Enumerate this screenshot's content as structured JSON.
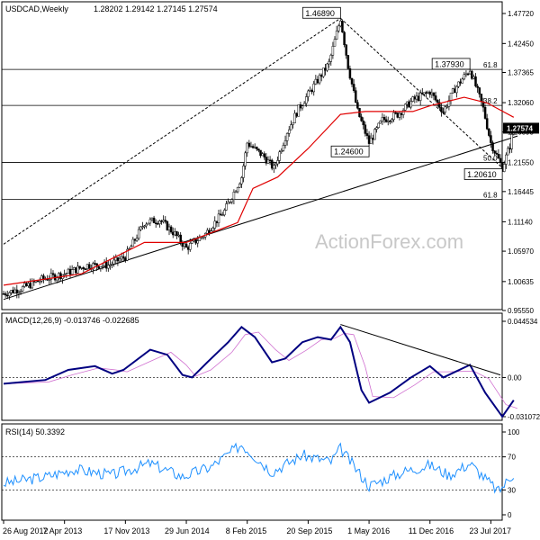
{
  "chart_data": {
    "type": "candlestick",
    "header": {
      "symbol": "USDCAD,Weekly",
      "ohlc": "1.28202 1.29142 1.27145 1.27574"
    },
    "watermark": "ActionForex.com",
    "price_axis": {
      "ticks": [
        1.4772,
        1.4245,
        1.37365,
        1.3206,
        1.26895,
        1.2155,
        1.16445,
        1.1114,
        1.0597,
        1.00635,
        0.9555
      ],
      "tick_labels": [
        "1.47720",
        "1.42450",
        "1.37365",
        "1.32060",
        "1.26895",
        "1.21550",
        "1.16445",
        "1.11140",
        "1.05970",
        "1.00635",
        "0.95550"
      ],
      "ylim": [
        0.9555,
        1.4772
      ],
      "current": {
        "value": 1.27574,
        "label": "1.27574"
      }
    },
    "x_axis": {
      "date_range": [
        "2012-08-26",
        "2017-08-27"
      ],
      "tick_labels": [
        "26 Aug 2012",
        "7 Apr 2013",
        "17 Nov 2013",
        "29 Jun 2014",
        "8 Feb 2015",
        "20 Sep 2015",
        "1 May 2016",
        "11 Dec 2016",
        "23 Jul 2017"
      ],
      "tick_dates": [
        "2012-08-26",
        "2013-04-07",
        "2013-11-17",
        "2014-06-29",
        "2015-02-08",
        "2015-09-20",
        "2016-05-01",
        "2016-12-11",
        "2017-07-23"
      ]
    },
    "price_series": [
      {
        "date": "2012-08-26",
        "close": 0.985
      },
      {
        "date": "2012-11-04",
        "close": 0.995
      },
      {
        "date": "2013-01-13",
        "close": 1.01
      },
      {
        "date": "2013-04-07",
        "close": 1.02
      },
      {
        "date": "2013-07-01",
        "close": 1.035
      },
      {
        "date": "2013-09-15",
        "close": 1.035
      },
      {
        "date": "2013-11-17",
        "close": 1.05
      },
      {
        "date": "2014-01-26",
        "close": 1.11
      },
      {
        "date": "2014-03-23",
        "close": 1.115
      },
      {
        "date": "2014-05-18",
        "close": 1.09
      },
      {
        "date": "2014-06-29",
        "close": 1.065
      },
      {
        "date": "2014-09-07",
        "close": 1.09
      },
      {
        "date": "2014-11-16",
        "close": 1.13
      },
      {
        "date": "2015-01-18",
        "close": 1.19
      },
      {
        "date": "2015-02-08",
        "close": 1.25
      },
      {
        "date": "2015-04-12",
        "close": 1.225
      },
      {
        "date": "2015-05-17",
        "close": 1.205
      },
      {
        "date": "2015-07-05",
        "close": 1.27
      },
      {
        "date": "2015-08-16",
        "close": 1.31
      },
      {
        "date": "2015-09-20",
        "close": 1.335
      },
      {
        "date": "2015-12-06",
        "close": 1.39
      },
      {
        "date": "2016-01-17",
        "close": 1.4689
      },
      {
        "date": "2016-02-14",
        "close": 1.385
      },
      {
        "date": "2016-03-20",
        "close": 1.305
      },
      {
        "date": "2016-05-01",
        "close": 1.25
      },
      {
        "date": "2016-06-19",
        "close": 1.29
      },
      {
        "date": "2016-08-14",
        "close": 1.3
      },
      {
        "date": "2016-10-09",
        "close": 1.325
      },
      {
        "date": "2016-12-11",
        "close": 1.34
      },
      {
        "date": "2017-01-29",
        "close": 1.305
      },
      {
        "date": "2017-03-12",
        "close": 1.345
      },
      {
        "date": "2017-05-07",
        "close": 1.3793
      },
      {
        "date": "2017-05-28",
        "close": 1.35
      },
      {
        "date": "2017-06-25",
        "close": 1.31
      },
      {
        "date": "2017-07-23",
        "close": 1.25
      },
      {
        "date": "2017-09-03",
        "close": 1.2061
      },
      {
        "date": "2017-10-01",
        "close": 1.245
      },
      {
        "date": "2017-10-15",
        "close": 1.27574
      }
    ],
    "moving_average": [
      {
        "date": "2012-08-26",
        "value": 1.0
      },
      {
        "date": "2013-06-09",
        "value": 1.02
      },
      {
        "date": "2014-01-26",
        "value": 1.075
      },
      {
        "date": "2014-06-29",
        "value": 1.075
      },
      {
        "date": "2015-01-04",
        "value": 1.11
      },
      {
        "date": "2015-03-01",
        "value": 1.17
      },
      {
        "date": "2015-05-31",
        "value": 1.19
      },
      {
        "date": "2015-09-20",
        "value": 1.24
      },
      {
        "date": "2016-01-17",
        "value": 1.3
      },
      {
        "date": "2016-04-17",
        "value": 1.305
      },
      {
        "date": "2016-10-09",
        "value": 1.305
      },
      {
        "date": "2016-12-11",
        "value": 1.315
      },
      {
        "date": "2017-04-16",
        "value": 1.33
      },
      {
        "date": "2017-07-09",
        "value": 1.32
      },
      {
        "date": "2017-10-15",
        "value": 1.295
      }
    ],
    "annotations": [
      {
        "label": "1.46890",
        "date": "2016-01-17",
        "value": 1.4689
      },
      {
        "label": "1.37930",
        "date": "2017-05-07",
        "value": 1.3793
      },
      {
        "label": "1.24600",
        "date": "2016-05-01",
        "value": 1.246
      },
      {
        "label": "1.20610",
        "date": "2017-09-03",
        "value": 1.2061
      }
    ],
    "fib_levels": [
      {
        "label": "61.8",
        "value": 1.379
      },
      {
        "label": "38.2",
        "value": 1.3157
      },
      {
        "label": "50.0",
        "value": 1.2155
      },
      {
        "label": "61.8",
        "value": 1.1505
      }
    ],
    "trendlines": [
      {
        "from": {
          "date": "2012-08-26",
          "value": 1.072
        },
        "to": {
          "date": "2016-01-17",
          "value": 1.4689
        }
      },
      {
        "from": {
          "date": "2016-01-17",
          "value": 1.4689
        },
        "to": {
          "date": "2017-09-03",
          "value": 1.2061
        }
      },
      {
        "from": {
          "date": "2012-08-26",
          "value": 0.975
        },
        "to": {
          "date": "2017-10-29",
          "value": 1.262
        }
      }
    ],
    "macd": {
      "label": "MACD(12,26,9) -0.013746 -0.022685",
      "ticks": [
        0.044534,
        0.0,
        -0.031072
      ],
      "tick_labels": [
        "0.044534",
        "0.00",
        "-0.031072"
      ],
      "series": [
        {
          "date": "2012-08-26",
          "value": -0.005
        },
        {
          "date": "2013-01-27",
          "value": -0.002
        },
        {
          "date": "2013-04-21",
          "value": 0.006
        },
        {
          "date": "2013-07-28",
          "value": 0.009
        },
        {
          "date": "2013-09-29",
          "value": 0.003
        },
        {
          "date": "2013-11-10",
          "value": 0.006
        },
        {
          "date": "2014-02-16",
          "value": 0.022
        },
        {
          "date": "2014-04-20",
          "value": 0.018
        },
        {
          "date": "2014-06-15",
          "value": 0.002
        },
        {
          "date": "2014-07-20",
          "value": 0.0
        },
        {
          "date": "2014-09-14",
          "value": 0.012
        },
        {
          "date": "2014-11-30",
          "value": 0.028
        },
        {
          "date": "2015-01-18",
          "value": 0.04
        },
        {
          "date": "2015-03-08",
          "value": 0.032
        },
        {
          "date": "2015-05-10",
          "value": 0.012
        },
        {
          "date": "2015-06-28",
          "value": 0.015
        },
        {
          "date": "2015-08-30",
          "value": 0.028
        },
        {
          "date": "2015-10-25",
          "value": 0.032
        },
        {
          "date": "2015-12-13",
          "value": 0.03
        },
        {
          "date": "2016-01-17",
          "value": 0.04
        },
        {
          "date": "2016-02-21",
          "value": 0.028
        },
        {
          "date": "2016-04-03",
          "value": -0.01
        },
        {
          "date": "2016-05-01",
          "value": -0.02
        },
        {
          "date": "2016-07-17",
          "value": -0.012
        },
        {
          "date": "2016-10-02",
          "value": 0.0
        },
        {
          "date": "2016-12-11",
          "value": 0.009
        },
        {
          "date": "2017-01-29",
          "value": 0.0
        },
        {
          "date": "2017-05-07",
          "value": 0.01
        },
        {
          "date": "2017-07-02",
          "value": -0.012
        },
        {
          "date": "2017-09-03",
          "value": -0.031
        },
        {
          "date": "2017-10-15",
          "value": -0.018
        }
      ]
    },
    "rsi": {
      "label": "RSI(14) 50.3392",
      "ticks": [
        100,
        70,
        30,
        0
      ],
      "tick_labels": [
        "100",
        "70",
        "30",
        "0"
      ],
      "series": [
        {
          "date": "2012-08-26",
          "value": 38
        },
        {
          "date": "2013-01-27",
          "value": 46
        },
        {
          "date": "2013-05-12",
          "value": 55
        },
        {
          "date": "2013-09-29",
          "value": 48
        },
        {
          "date": "2014-02-16",
          "value": 62
        },
        {
          "date": "2014-06-15",
          "value": 46
        },
        {
          "date": "2014-09-28",
          "value": 58
        },
        {
          "date": "2015-01-18",
          "value": 85
        },
        {
          "date": "2015-05-10",
          "value": 52
        },
        {
          "date": "2015-08-30",
          "value": 72
        },
        {
          "date": "2015-12-13",
          "value": 64
        },
        {
          "date": "2016-01-17",
          "value": 80
        },
        {
          "date": "2016-05-01",
          "value": 35
        },
        {
          "date": "2016-09-04",
          "value": 52
        },
        {
          "date": "2016-12-11",
          "value": 60
        },
        {
          "date": "2017-02-19",
          "value": 48
        },
        {
          "date": "2017-05-07",
          "value": 62
        },
        {
          "date": "2017-08-20",
          "value": 28
        },
        {
          "date": "2017-10-15",
          "value": 50
        }
      ]
    }
  }
}
